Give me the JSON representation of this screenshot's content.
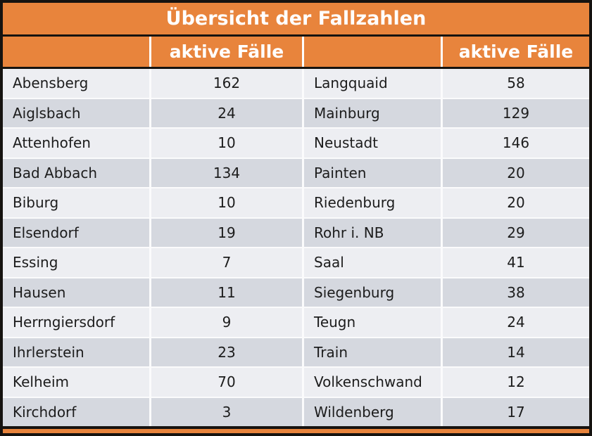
{
  "title": "Übersicht der Fallzahlen",
  "header": {
    "left_name_header": "",
    "left_value_header": "aktive Fälle",
    "right_name_header": "",
    "right_value_header": "aktive Fälle"
  },
  "colors": {
    "accent_orange": "#E8843C",
    "row_light": "#EDEEF2",
    "row_dark": "#D5D8DF",
    "frame_black": "#161310",
    "header_text": "#FFFFFF",
    "body_text": "#1C1C1C"
  },
  "chart_data": {
    "type": "table",
    "title": "Übersicht der Fallzahlen",
    "column_headers": [
      "",
      "aktive Fälle",
      "",
      "aktive Fälle"
    ],
    "entries": [
      {
        "name": "Abensberg",
        "value": 162
      },
      {
        "name": "Aiglsbach",
        "value": 24
      },
      {
        "name": "Attenhofen",
        "value": 10
      },
      {
        "name": "Bad Abbach",
        "value": 134
      },
      {
        "name": "Biburg",
        "value": 10
      },
      {
        "name": "Elsendorf",
        "value": 19
      },
      {
        "name": "Essing",
        "value": 7
      },
      {
        "name": "Hausen",
        "value": 11
      },
      {
        "name": "Herrngiersdorf",
        "value": 9
      },
      {
        "name": "Ihrlerstein",
        "value": 23
      },
      {
        "name": "Kelheim",
        "value": 70
      },
      {
        "name": "Kirchdorf",
        "value": 3
      },
      {
        "name": "Langquaid",
        "value": 58
      },
      {
        "name": "Mainburg",
        "value": 129
      },
      {
        "name": "Neustadt",
        "value": 146
      },
      {
        "name": "Painten",
        "value": 20
      },
      {
        "name": "Riedenburg",
        "value": 20
      },
      {
        "name": "Rohr i. NB",
        "value": 29
      },
      {
        "name": "Saal",
        "value": 41
      },
      {
        "name": "Siegenburg",
        "value": 38
      },
      {
        "name": "Teugn",
        "value": 24
      },
      {
        "name": "Train",
        "value": 14
      },
      {
        "name": "Volkenschwand",
        "value": 12
      },
      {
        "name": "Wildenberg",
        "value": 17
      }
    ]
  }
}
